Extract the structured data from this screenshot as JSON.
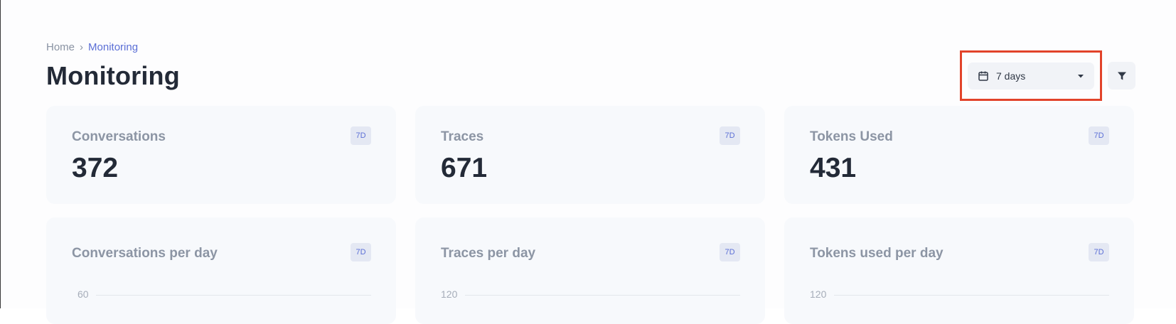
{
  "breadcrumb": {
    "home": "Home",
    "separator": "›",
    "current": "Monitoring"
  },
  "page": {
    "title": "Monitoring"
  },
  "toolbar": {
    "range_value": "7 days",
    "range_icon": "calendar-icon",
    "filter_icon": "filter-icon"
  },
  "stats": [
    {
      "label": "Conversations",
      "badge": "7D",
      "value": "372"
    },
    {
      "label": "Traces",
      "badge": "7D",
      "value": "671"
    },
    {
      "label": "Tokens Used",
      "badge": "7D",
      "value": "431"
    }
  ],
  "charts": [
    {
      "title": "Conversations per day",
      "badge": "7D",
      "top_tick": "60"
    },
    {
      "title": "Traces per day",
      "badge": "7D",
      "top_tick": "120"
    },
    {
      "title": "Tokens used per day",
      "badge": "7D",
      "top_tick": "120"
    }
  ],
  "colors": {
    "accent": "#5b6fd6",
    "highlight": "#e2432a",
    "card_bg": "#f7f9fc"
  }
}
